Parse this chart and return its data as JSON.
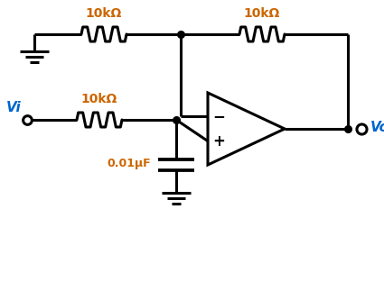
{
  "background_color": "#ffffff",
  "line_color": "#000000",
  "label_color_orange": "#cc6600",
  "label_color_blue": "#0066cc",
  "resistor_label_top_left": "10kΩ",
  "resistor_label_top_right": "10kΩ",
  "resistor_label_mid": "10kΩ",
  "capacitor_label": "0.01μF",
  "vi_label": "Vi",
  "vo_label": "Vo",
  "minus_label": "−",
  "plus_label": "+"
}
